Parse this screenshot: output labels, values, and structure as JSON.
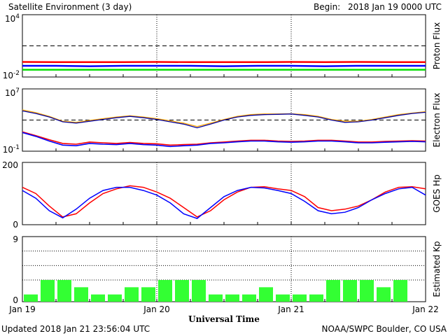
{
  "header": {
    "title": "Satellite Environment (3 day)",
    "begin_label": "Begin:",
    "begin_value": "2018 Jan 19 0000 UTC"
  },
  "footer": {
    "updated": "Updated 2018 Jan 21 23:56:04 UTC",
    "credit": "NOAA/SWPC Boulder, CO USA"
  },
  "colors": {
    "red": "#ff0000",
    "blue": "#0000ff",
    "green": "#00e000",
    "orange": "#ffa500",
    "navy": "#0000a0",
    "kp_bar": "#33ff33"
  },
  "chart_data": [
    {
      "panel": "proton",
      "type": "line",
      "ylabel": "Proton Flux",
      "yscale": "log",
      "ylim": [
        0.01,
        10000
      ],
      "ytick_labels": [
        {
          "base": "10",
          "exp": "4"
        },
        {
          "base": "10",
          "exp": "-2"
        }
      ],
      "threshold": 10,
      "x": [
        0,
        0.25,
        0.5,
        0.75,
        1,
        1.25,
        1.5,
        1.75,
        2,
        2.25,
        2.5,
        2.75,
        3
      ],
      "series": [
        {
          "color": "red",
          "values": [
            0.28,
            0.27,
            0.27,
            0.27,
            0.28,
            0.27,
            0.27,
            0.27,
            0.28,
            0.27,
            0.28,
            0.27,
            0.27
          ]
        },
        {
          "color": "blue",
          "values": [
            0.12,
            0.12,
            0.11,
            0.12,
            0.12,
            0.12,
            0.11,
            0.12,
            0.12,
            0.11,
            0.12,
            0.12,
            0.12
          ]
        },
        {
          "color": "green",
          "values": [
            0.05,
            0.05,
            0.05,
            0.05,
            0.05,
            0.05,
            0.05,
            0.05,
            0.05,
            0.05,
            0.05,
            0.05,
            0.05
          ]
        }
      ]
    },
    {
      "panel": "electron",
      "type": "line",
      "ylabel": "Electron Flux",
      "yscale": "log",
      "ylim": [
        0.1,
        10000000
      ],
      "ytick_labels": [
        {
          "base": "10",
          "exp": "7"
        },
        {
          "base": "10",
          "exp": "-1"
        }
      ],
      "threshold": 1000,
      "x": [
        0,
        0.1,
        0.2,
        0.3,
        0.4,
        0.5,
        0.6,
        0.7,
        0.8,
        0.9,
        1,
        1.1,
        1.2,
        1.3,
        1.4,
        1.5,
        1.6,
        1.7,
        1.8,
        1.9,
        2,
        2.1,
        2.2,
        2.3,
        2.4,
        2.5,
        2.6,
        2.7,
        2.8,
        2.9,
        3
      ],
      "series": [
        {
          "color": "orange",
          "values": [
            20000,
            9000,
            3000,
            700,
            500,
            900,
            1500,
            2500,
            3500,
            2500,
            1500,
            800,
            400,
            150,
            400,
            1200,
            3000,
            5000,
            6000,
            6000,
            6500,
            5000,
            3000,
            1200,
            700,
            700,
            1200,
            2500,
            5000,
            8000,
            12000
          ]
        },
        {
          "color": "navy",
          "values": [
            15000,
            7000,
            2500,
            600,
            400,
            700,
            1200,
            2000,
            3000,
            2000,
            1200,
            600,
            300,
            100,
            300,
            1000,
            2500,
            4000,
            5000,
            5500,
            6000,
            4000,
            2500,
            1000,
            500,
            600,
            1000,
            2000,
            4000,
            7000,
            10000
          ]
        },
        {
          "color": "red",
          "values": [
            30,
            10,
            3,
            1,
            0.8,
            1.5,
            1.2,
            1,
            1.3,
            1,
            0.9,
            0.6,
            0.7,
            0.8,
            1.2,
            1.5,
            2,
            2.5,
            2.5,
            2,
            1.8,
            2,
            2.5,
            2.5,
            2,
            1.5,
            1.5,
            1.8,
            2,
            2.2,
            2
          ]
        },
        {
          "color": "blue",
          "values": [
            25,
            8,
            2,
            0.6,
            0.5,
            1,
            0.8,
            0.7,
            1,
            0.7,
            0.6,
            0.4,
            0.5,
            0.6,
            1,
            1.2,
            1.6,
            2,
            2,
            1.6,
            1.4,
            1.6,
            2,
            2,
            1.6,
            1.2,
            1.2,
            1.4,
            1.6,
            1.8,
            1.6
          ]
        }
      ]
    },
    {
      "panel": "hp",
      "type": "line",
      "ylabel": "GOES Hp",
      "ylim": [
        0,
        200
      ],
      "ytick_labels": [
        "200",
        "0"
      ],
      "x": [
        0,
        0.1,
        0.2,
        0.3,
        0.4,
        0.5,
        0.6,
        0.7,
        0.8,
        0.9,
        1,
        1.1,
        1.2,
        1.3,
        1.4,
        1.5,
        1.6,
        1.7,
        1.8,
        1.9,
        2,
        2.1,
        2.2,
        2.3,
        2.4,
        2.5,
        2.6,
        2.7,
        2.8,
        2.9,
        3
      ],
      "series": [
        {
          "color": "red",
          "values": [
            120,
            100,
            60,
            25,
            35,
            70,
            100,
            115,
            125,
            120,
            105,
            85,
            55,
            25,
            45,
            80,
            105,
            120,
            122,
            115,
            110,
            90,
            55,
            45,
            50,
            60,
            80,
            105,
            120,
            122,
            115
          ]
        },
        {
          "color": "blue",
          "values": [
            110,
            85,
            45,
            22,
            50,
            85,
            110,
            120,
            120,
            110,
            95,
            70,
            35,
            20,
            55,
            90,
            110,
            120,
            118,
            110,
            100,
            75,
            45,
            35,
            40,
            55,
            80,
            100,
            115,
            120,
            95
          ]
        }
      ]
    },
    {
      "panel": "kp",
      "type": "bar",
      "ylabel": "Estimated Kp",
      "xlabel": "Universal Time",
      "ylim": [
        0,
        9
      ],
      "ytick_labels": [
        "9",
        "0"
      ],
      "x_tick_labels": [
        "Jan 19",
        "Jan 20",
        "Jan 21",
        "Jan 22"
      ],
      "values": [
        1,
        3,
        3,
        2,
        1,
        1,
        2,
        2,
        3,
        3,
        3,
        1,
        1,
        1,
        2,
        1,
        1,
        1,
        3,
        3,
        3,
        2,
        3,
        0
      ]
    }
  ]
}
